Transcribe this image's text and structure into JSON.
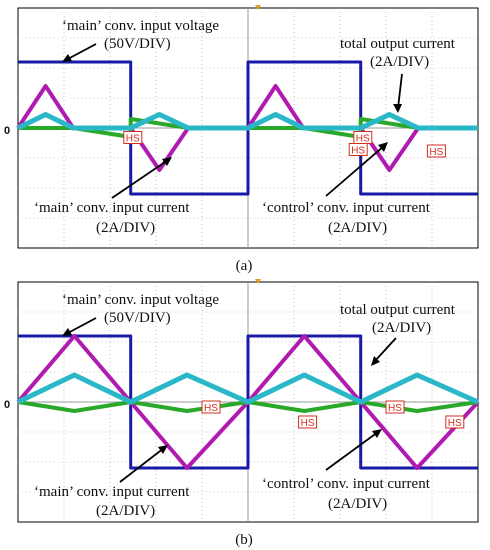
{
  "colors": {
    "voltage": "#1a1aa8",
    "main_current": "#b01ab0",
    "total_current": "#2ab8c8",
    "control_current": "#2aa82a",
    "grid": "#9a9a9a",
    "hs": "#d03020",
    "trigger": "#e0a020"
  },
  "chart_data": [
    {
      "type": "line",
      "panel": "a",
      "caption": "(a)",
      "zero_marker": "0",
      "hs_marker": "HS",
      "grid": true,
      "annotations": [
        {
          "text": "‘main’ conv. input voltage",
          "target": "voltage"
        },
        {
          "text": "(50V/DIV)"
        },
        {
          "text": "total output current",
          "target": "total"
        },
        {
          "text": "(2A/DIV)"
        },
        {
          "text": "‘main’ conv. input current",
          "target": "main"
        },
        {
          "text": "(2A/DIV)"
        },
        {
          "text": "‘control’ conv. input current",
          "target": "control"
        },
        {
          "text": "(2A/DIV)"
        }
      ],
      "x_range_div": [
        0,
        10
      ],
      "y_range_div": [
        -4,
        4
      ],
      "series": [
        {
          "key": "voltage",
          "x": [
            0,
            4.9,
            4.9,
            10
          ],
          "y": [
            2.2,
            2.2,
            -2.2,
            -2.2
          ],
          "periodic": true
        },
        {
          "key": "main",
          "x": [
            0,
            1.2,
            2.4,
            4.9,
            6.15,
            7.4,
            10
          ],
          "y": [
            0,
            1.4,
            0,
            0,
            -1.4,
            0,
            0
          ],
          "periodic": true
        },
        {
          "key": "total",
          "x": [
            0,
            1.2,
            2.4,
            4.9,
            6.15,
            7.4,
            10
          ],
          "y": [
            0,
            0.45,
            0,
            0,
            0.45,
            0,
            0
          ],
          "periodic": true
        },
        {
          "key": "control",
          "x": [
            0,
            2.4,
            4.9,
            4.9,
            7.4,
            10
          ],
          "y": [
            0,
            0,
            -0.3,
            0.3,
            0,
            0
          ],
          "periodic": true
        }
      ]
    },
    {
      "type": "line",
      "panel": "b",
      "caption": "(b)",
      "zero_marker": "0",
      "hs_marker": "HS",
      "grid": true,
      "annotations": [
        {
          "text": "‘main’ conv. input voltage",
          "target": "voltage"
        },
        {
          "text": "(50V/DIV)"
        },
        {
          "text": "total output current",
          "target": "total"
        },
        {
          "text": "(2A/DIV)"
        },
        {
          "text": "‘main’ conv. input current",
          "target": "main"
        },
        {
          "text": "(2A/DIV)"
        },
        {
          "text": "‘control’ conv. input current",
          "target": "control"
        },
        {
          "text": "(2A/DIV)"
        }
      ],
      "x_range_div": [
        0,
        10
      ],
      "y_range_div": [
        -4,
        4
      ],
      "series": [
        {
          "key": "voltage",
          "x": [
            0,
            4.9,
            4.9,
            10
          ],
          "y": [
            2.2,
            2.2,
            -2.2,
            -2.2
          ],
          "periodic": true
        },
        {
          "key": "main",
          "x": [
            0,
            2.45,
            4.9,
            7.35,
            10
          ],
          "y": [
            0,
            2.2,
            0,
            -2.2,
            0
          ],
          "periodic": true
        },
        {
          "key": "total",
          "x": [
            0,
            2.45,
            4.9,
            7.35,
            10
          ],
          "y": [
            0,
            0.9,
            0,
            0.9,
            0
          ],
          "periodic": true
        },
        {
          "key": "control",
          "x": [
            0,
            2.45,
            4.9,
            4.9,
            7.35,
            10
          ],
          "y": [
            0,
            -0.3,
            0,
            0,
            -0.3,
            0
          ],
          "periodic": true
        }
      ]
    }
  ]
}
